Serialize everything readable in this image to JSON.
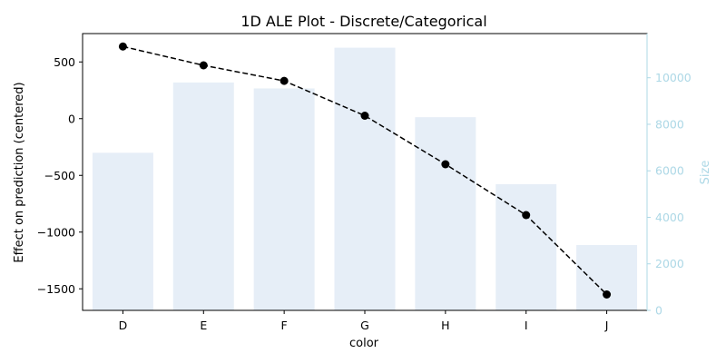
{
  "chart_data": {
    "type": "bar",
    "title": "1D ALE Plot - Discrete/Categorical",
    "xlabel": "color",
    "ylabel": "Effect on prediction (centered)",
    "y2label": "Size",
    "categories": [
      "D",
      "E",
      "F",
      "G",
      "H",
      "I",
      "J"
    ],
    "ylim": [
      -1690,
      750
    ],
    "y2lim": [
      0,
      11900
    ],
    "yticks": [
      500,
      0,
      -500,
      -1000,
      -1500
    ],
    "yticklabels": [
      "500",
      "0",
      "−500",
      "−1000",
      "−1500"
    ],
    "y2ticks": [
      0,
      2000,
      4000,
      6000,
      8000,
      10000
    ],
    "y2ticklabels": [
      "0",
      "2000",
      "4000",
      "6000",
      "8000",
      "10000"
    ],
    "series": [
      {
        "kind": "bar",
        "axis": "right",
        "color": "#e6eef7",
        "values": [
          6775,
          9797,
          9542,
          11292,
          8304,
          5422,
          2808
        ]
      },
      {
        "kind": "line",
        "axis": "left",
        "style": "dashed",
        "marker": "circle",
        "color": "#000000",
        "values": [
          636,
          470,
          333,
          26,
          -402,
          -850,
          -1550
        ]
      }
    ],
    "grid": false,
    "legend": "none"
  }
}
